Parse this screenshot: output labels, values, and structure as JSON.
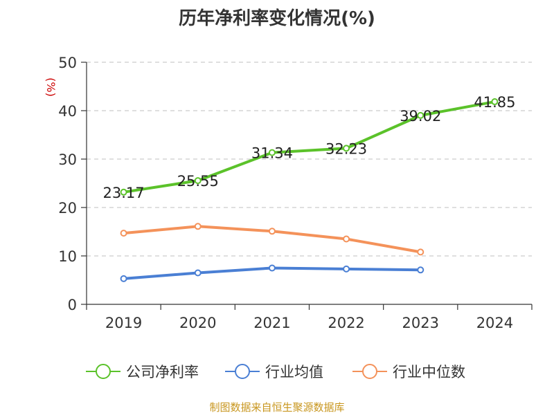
{
  "title": "历年净利率变化情况(%)",
  "source": "制图数据来自恒生聚源数据库",
  "chart_data": {
    "type": "line",
    "title": "历年净利率变化情况(%)",
    "ylabel": "(%)",
    "xlabel": "",
    "categories": [
      "2019",
      "2020",
      "2021",
      "2022",
      "2023",
      "2024"
    ],
    "ylim": [
      0,
      50
    ],
    "yticks": [
      0,
      10,
      20,
      30,
      40,
      50
    ],
    "grid": true,
    "legend_position": "bottom",
    "series": [
      {
        "name": "公司净利率",
        "color": "#5bc22a",
        "values": [
          23.17,
          25.55,
          31.34,
          32.23,
          39.02,
          41.85
        ],
        "labels": [
          "23.17",
          "25.55",
          "31.34",
          "32.23",
          "39.02",
          "41.85"
        ]
      },
      {
        "name": "行业均值",
        "color": "#4a7fd4",
        "values": [
          5.3,
          6.5,
          7.5,
          7.3,
          7.1,
          null
        ]
      },
      {
        "name": "行业中位数",
        "color": "#f4925a",
        "values": [
          14.7,
          16.1,
          15.1,
          13.5,
          10.8,
          null
        ]
      }
    ]
  }
}
